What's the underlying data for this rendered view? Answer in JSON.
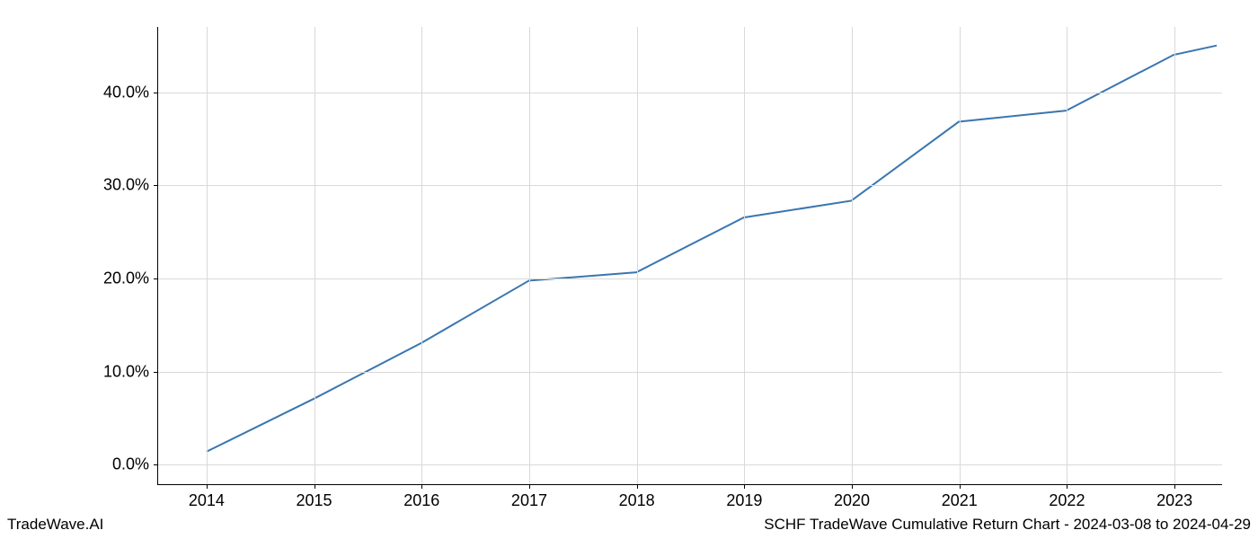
{
  "chart": {
    "type": "line",
    "x_values": [
      2014,
      2015,
      2016,
      2017,
      2018,
      2019,
      2020,
      2021,
      2022,
      2023,
      2023.4
    ],
    "y_values": [
      1.3,
      7.0,
      13.0,
      19.7,
      20.6,
      26.5,
      28.3,
      36.8,
      38.0,
      44.0,
      45.0
    ],
    "line_color": "#3a76af",
    "line_width": 2.0,
    "background_color": "#ffffff",
    "grid_color": "#d9d9d9",
    "axis_color": "#000000",
    "x_axis": {
      "ticks": [
        2014,
        2015,
        2016,
        2017,
        2018,
        2019,
        2020,
        2021,
        2022,
        2023
      ],
      "tick_labels": [
        "2014",
        "2015",
        "2016",
        "2017",
        "2018",
        "2019",
        "2020",
        "2021",
        "2022",
        "2023"
      ],
      "xlim": [
        2013.55,
        2023.45
      ],
      "label_fontsize": 18
    },
    "y_axis": {
      "ticks": [
        0,
        10,
        20,
        30,
        40
      ],
      "tick_labels": [
        "0.0%",
        "10.0%",
        "20.0%",
        "30.0%",
        "40.0%"
      ],
      "ylim": [
        -2.2,
        47.0
      ],
      "label_fontsize": 18
    }
  },
  "footer": {
    "left": "TradeWave.AI",
    "right": "SCHF TradeWave Cumulative Return Chart - 2024-03-08 to 2024-04-29"
  }
}
